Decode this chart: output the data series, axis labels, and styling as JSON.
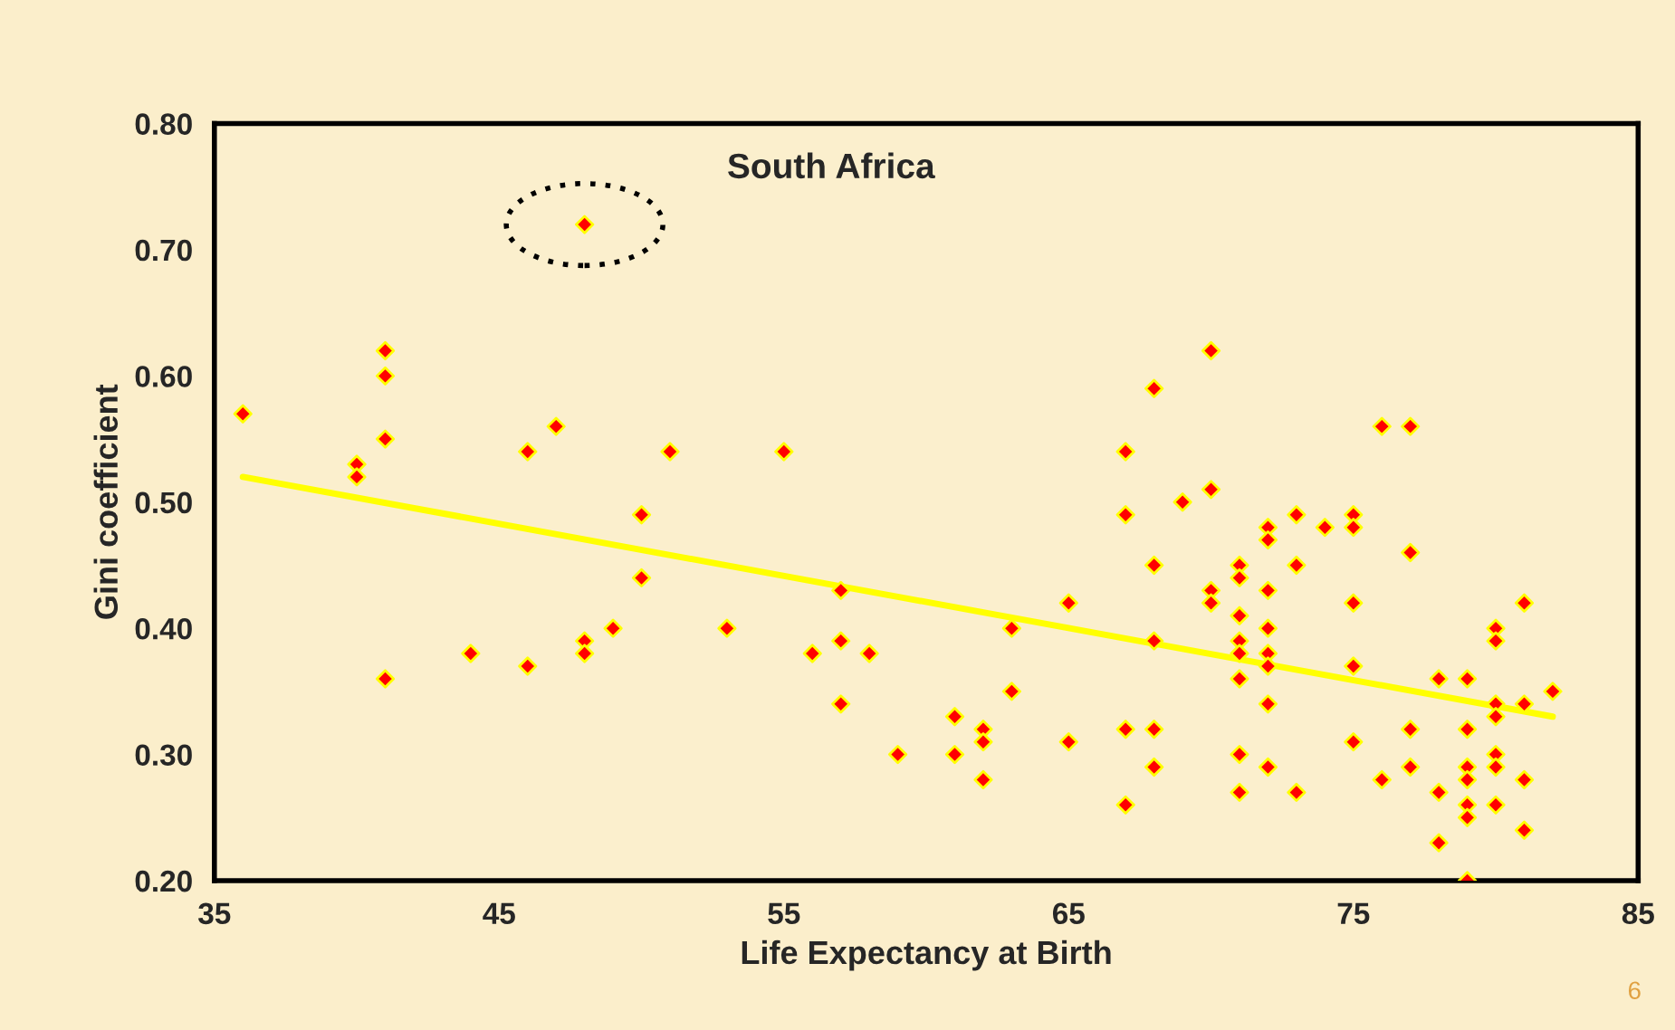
{
  "chart_data": {
    "type": "scatter",
    "xlabel": "Life Expectancy at Birth",
    "ylabel": "Gini coefficient",
    "xlim": [
      35,
      85
    ],
    "xticks": [
      35,
      45,
      55,
      65,
      75,
      85
    ],
    "ylim": [
      0.2,
      0.8
    ],
    "yticks": [
      {
        "value": 0.2,
        "label": "0.20"
      },
      {
        "value": 0.3,
        "label": "0.30"
      },
      {
        "value": 0.4,
        "label": "0.40"
      },
      {
        "value": 0.5,
        "label": "0.50"
      },
      {
        "value": 0.6,
        "label": "0.60"
      },
      {
        "value": 0.7,
        "label": "0.70"
      },
      {
        "value": 0.8,
        "label": "0.80"
      }
    ],
    "grid": false,
    "legend": false,
    "marker": "diamond",
    "series": [
      {
        "type": "scatter",
        "color": "#ff0000",
        "x": [
          36,
          40,
          40,
          41,
          41,
          41,
          41,
          44,
          46,
          46,
          47,
          48,
          48,
          48,
          49,
          50,
          50,
          51,
          53,
          55,
          56,
          57,
          57,
          57,
          58,
          59,
          61,
          61,
          62,
          62,
          62,
          63,
          63,
          65,
          65,
          67,
          67,
          67,
          67,
          68,
          68,
          68,
          68,
          68,
          69,
          70,
          70,
          70,
          70,
          71,
          71,
          71,
          71,
          71,
          71,
          71,
          71,
          72,
          72,
          72,
          72,
          72,
          72,
          72,
          72,
          73,
          73,
          73,
          74,
          75,
          75,
          75,
          75,
          75,
          76,
          76,
          77,
          77,
          77,
          77,
          78,
          78,
          78,
          79,
          79,
          79,
          79,
          79,
          79,
          79,
          80,
          80,
          80,
          80,
          80,
          80,
          80,
          81,
          81,
          81,
          81,
          82
        ],
        "values": [
          0.57,
          0.53,
          0.52,
          0.62,
          0.6,
          0.55,
          0.36,
          0.38,
          0.54,
          0.37,
          0.56,
          0.72,
          0.39,
          0.38,
          0.4,
          0.49,
          0.44,
          0.54,
          0.4,
          0.54,
          0.38,
          0.43,
          0.39,
          0.34,
          0.38,
          0.3,
          0.33,
          0.3,
          0.32,
          0.31,
          0.28,
          0.4,
          0.35,
          0.42,
          0.31,
          0.54,
          0.49,
          0.32,
          0.26,
          0.59,
          0.45,
          0.39,
          0.32,
          0.29,
          0.5,
          0.62,
          0.51,
          0.43,
          0.42,
          0.45,
          0.44,
          0.41,
          0.39,
          0.38,
          0.36,
          0.3,
          0.27,
          0.48,
          0.47,
          0.43,
          0.4,
          0.38,
          0.37,
          0.34,
          0.29,
          0.49,
          0.45,
          0.27,
          0.48,
          0.49,
          0.48,
          0.42,
          0.37,
          0.31,
          0.56,
          0.28,
          0.56,
          0.46,
          0.32,
          0.29,
          0.36,
          0.27,
          0.23,
          0.36,
          0.32,
          0.29,
          0.28,
          0.26,
          0.25,
          0.2,
          0.4,
          0.39,
          0.34,
          0.33,
          0.3,
          0.29,
          0.26,
          0.42,
          0.34,
          0.28,
          0.24,
          0.35
        ]
      },
      {
        "type": "line",
        "color": "#ffff00",
        "x": [
          36,
          82
        ],
        "values": [
          0.52,
          0.33
        ],
        "marker": "none",
        "line_style": "solid"
      }
    ],
    "annotations": [
      "South Africa",
      "6"
    ]
  }
}
